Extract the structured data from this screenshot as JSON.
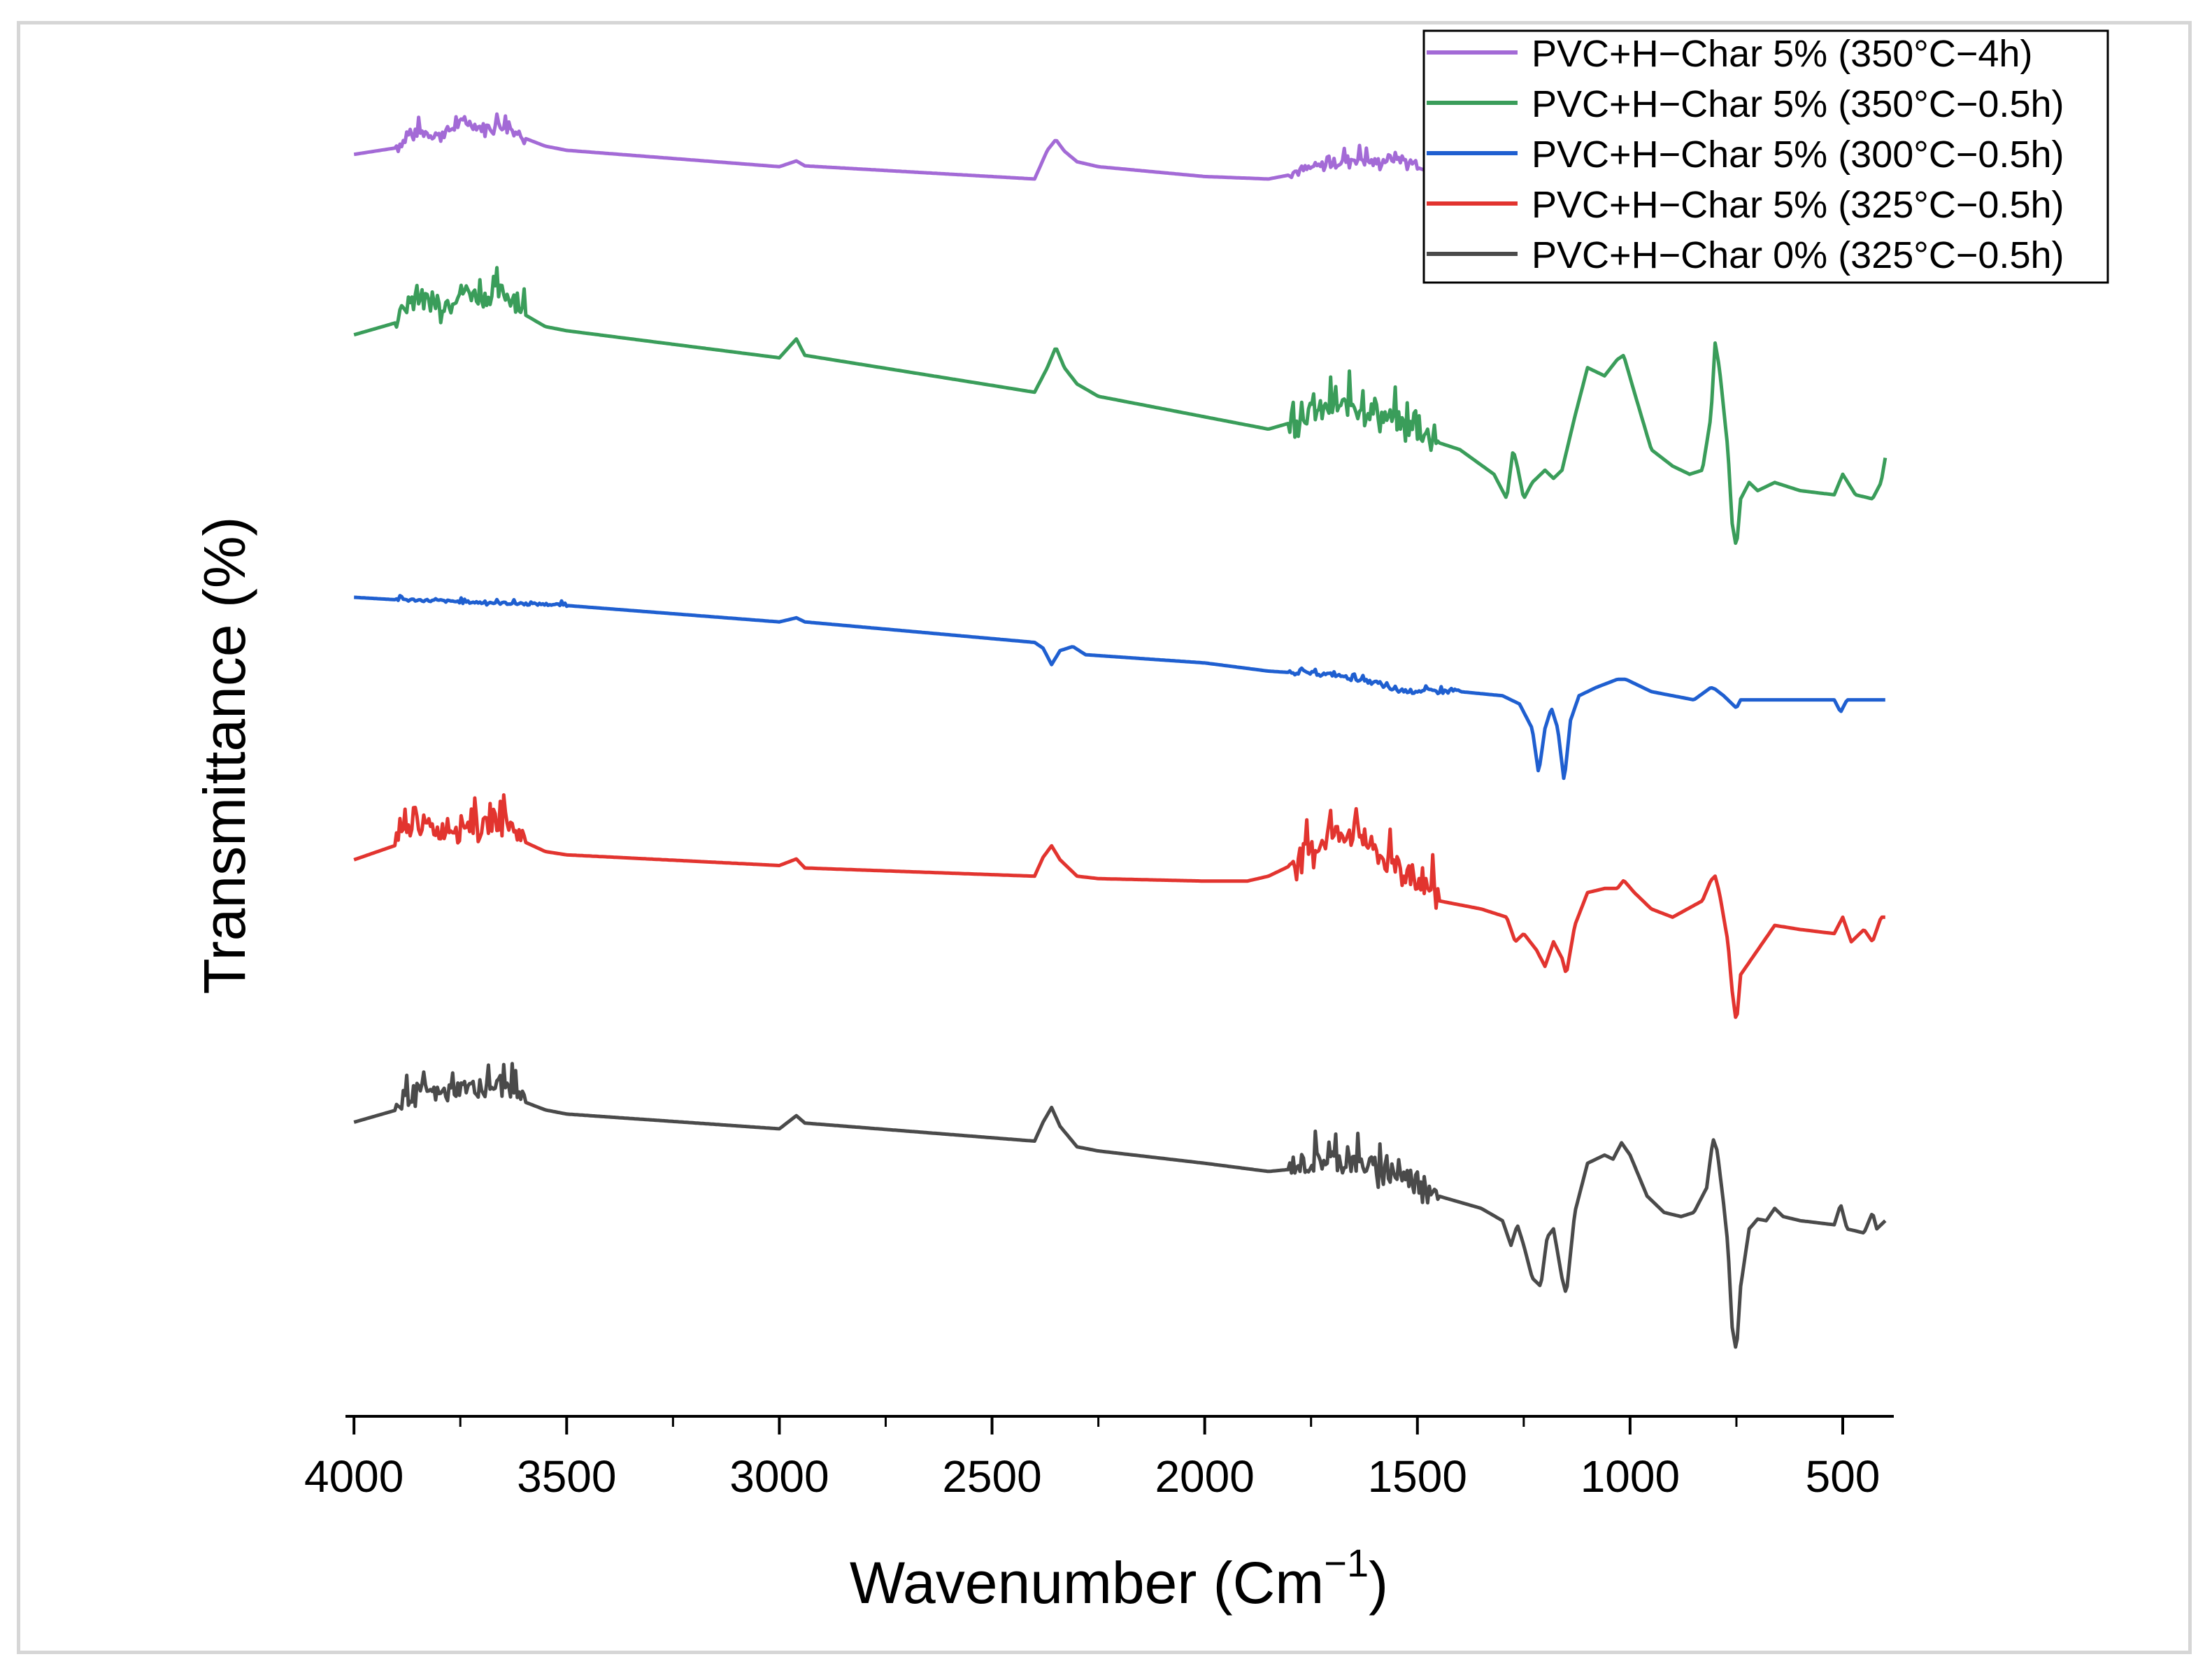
{
  "chart_data": {
    "type": "line",
    "xlabel": "Wavenumber (Cm",
    "xlabel_sup": "−1",
    "xlabel_tail": ")",
    "ylabel": "Transmittance (%)",
    "xlim": [
      4020,
      380
    ],
    "x_reversed": true,
    "ylim_note": "stacked offset traces, arbitrary units, no y tick labels",
    "x_ticks": [
      4000,
      3500,
      3000,
      2500,
      2000,
      1500,
      1000,
      500
    ],
    "x_tick_labels": [
      "4000",
      "3500",
      "3000",
      "2500",
      "2000",
      "1500",
      "1000",
      "500"
    ],
    "legend_position": "top-right",
    "series": [
      {
        "name": "PVC+H−Char 5% (350°C−4h)",
        "color": "#a36ad6",
        "offset": 88,
        "noise": [
          [
            3600,
            3900,
            1.2
          ],
          [
            1500,
            1800,
            1.3
          ]
        ],
        "points": [
          [
            4000,
            0
          ],
          [
            3900,
            0.8
          ],
          [
            3850,
            2.5
          ],
          [
            3800,
            2
          ],
          [
            3740,
            3.8
          ],
          [
            3700,
            3
          ],
          [
            3650,
            3.3
          ],
          [
            3600,
            2
          ],
          [
            3550,
            1
          ],
          [
            3500,
            0.5
          ],
          [
            3000,
            -1.5
          ],
          [
            2960,
            -0.8
          ],
          [
            2940,
            -1.4
          ],
          [
            2400,
            -3
          ],
          [
            2370,
            0.5
          ],
          [
            2350,
            1.8
          ],
          [
            2330,
            0.4
          ],
          [
            2300,
            -0.9
          ],
          [
            2250,
            -1.5
          ],
          [
            2000,
            -2.7
          ],
          [
            1850,
            -3
          ],
          [
            1750,
            -2
          ],
          [
            1700,
            -1.4
          ],
          [
            1650,
            -0.8
          ],
          [
            1600,
            -1.3
          ],
          [
            1550,
            -0.6
          ],
          [
            1500,
            -1.6
          ],
          [
            1400,
            -3.5
          ],
          [
            1300,
            -5.5
          ],
          [
            1270,
            -6.5
          ],
          [
            1240,
            -8
          ],
          [
            1215,
            -11
          ],
          [
            1200,
            -8
          ],
          [
            1180,
            -7.5
          ],
          [
            1160,
            -10
          ],
          [
            1150,
            -12
          ],
          [
            1130,
            -7
          ],
          [
            1100,
            -5
          ],
          [
            1060,
            -4
          ],
          [
            1030,
            -4
          ],
          [
            1010,
            -4.8
          ],
          [
            950,
            -5.8
          ],
          [
            850,
            -6.5
          ],
          [
            800,
            -3.8
          ],
          [
            780,
            -5.8
          ],
          [
            760,
            -9
          ],
          [
            740,
            -8
          ],
          [
            700,
            -7
          ],
          [
            660,
            -6.5
          ],
          [
            600,
            -7
          ],
          [
            520,
            -7.5
          ],
          [
            500,
            -6
          ],
          [
            480,
            -8
          ],
          [
            420,
            -8
          ],
          [
            400,
            -9
          ]
        ]
      },
      {
        "name": "PVC+H−Char 5% (350°C−0.5h)",
        "color": "#3a9d5a",
        "offset": 66,
        "noise": [
          [
            3600,
            3900,
            2.2
          ],
          [
            1450,
            1800,
            2.6
          ]
        ],
        "points": [
          [
            4000,
            0
          ],
          [
            3900,
            1.5
          ],
          [
            3850,
            4.3
          ],
          [
            3800,
            3
          ],
          [
            3740,
            5
          ],
          [
            3700,
            4
          ],
          [
            3650,
            4.8
          ],
          [
            3600,
            2.5
          ],
          [
            3550,
            1
          ],
          [
            3500,
            0.5
          ],
          [
            3000,
            -2.8
          ],
          [
            2960,
            -0.5
          ],
          [
            2940,
            -2.5
          ],
          [
            2400,
            -7
          ],
          [
            2370,
            -4
          ],
          [
            2350,
            -1.5
          ],
          [
            2330,
            -4
          ],
          [
            2300,
            -6
          ],
          [
            2250,
            -7.5
          ],
          [
            2000,
            -10
          ],
          [
            1850,
            -11.5
          ],
          [
            1750,
            -10
          ],
          [
            1700,
            -9.5
          ],
          [
            1650,
            -9
          ],
          [
            1600,
            -10
          ],
          [
            1550,
            -11
          ],
          [
            1500,
            -12.3
          ],
          [
            1400,
            -14
          ],
          [
            1320,
            -17
          ],
          [
            1290,
            -20
          ],
          [
            1275,
            -14
          ],
          [
            1265,
            -16
          ],
          [
            1250,
            -20
          ],
          [
            1230,
            -18
          ],
          [
            1200,
            -16.5
          ],
          [
            1180,
            -17.5
          ],
          [
            1160,
            -16.5
          ],
          [
            1130,
            -10
          ],
          [
            1100,
            -4
          ],
          [
            1060,
            -5
          ],
          [
            1030,
            -3
          ],
          [
            1015,
            -2.5
          ],
          [
            990,
            -7
          ],
          [
            950,
            -14
          ],
          [
            900,
            -16
          ],
          [
            860,
            -17
          ],
          [
            830,
            -16.5
          ],
          [
            810,
            -10
          ],
          [
            800,
            -1
          ],
          [
            790,
            -4
          ],
          [
            770,
            -14
          ],
          [
            760,
            -23
          ],
          [
            750,
            -26
          ],
          [
            740,
            -20
          ],
          [
            720,
            -18
          ],
          [
            700,
            -19
          ],
          [
            660,
            -18
          ],
          [
            600,
            -19
          ],
          [
            520,
            -19.5
          ],
          [
            500,
            -17
          ],
          [
            470,
            -19.5
          ],
          [
            430,
            -20
          ],
          [
            410,
            -18
          ],
          [
            400,
            -15
          ]
        ]
      },
      {
        "name": "PVC+H−Char 5% (300°C−0.5h)",
        "color": "#1f5fd0",
        "offset": 34,
        "noise": [
          [
            3500,
            3900,
            0.3
          ],
          [
            1400,
            1800,
            0.4
          ]
        ],
        "points": [
          [
            4000,
            0
          ],
          [
            3900,
            -0.3
          ],
          [
            3800,
            -0.5
          ],
          [
            3700,
            -0.7
          ],
          [
            3500,
            -1
          ],
          [
            3000,
            -3
          ],
          [
            2960,
            -2.5
          ],
          [
            2940,
            -3
          ],
          [
            2400,
            -5.5
          ],
          [
            2380,
            -6.2
          ],
          [
            2360,
            -8.2
          ],
          [
            2340,
            -6.5
          ],
          [
            2310,
            -6
          ],
          [
            2280,
            -7
          ],
          [
            2000,
            -8
          ],
          [
            1850,
            -9
          ],
          [
            1700,
            -9.5
          ],
          [
            1600,
            -10.5
          ],
          [
            1550,
            -11.5
          ],
          [
            1500,
            -11.5
          ],
          [
            1400,
            -11.5
          ],
          [
            1300,
            -12
          ],
          [
            1260,
            -13
          ],
          [
            1230,
            -16
          ],
          [
            1215,
            -21.5
          ],
          [
            1200,
            -16
          ],
          [
            1185,
            -13.5
          ],
          [
            1170,
            -16
          ],
          [
            1155,
            -22.5
          ],
          [
            1140,
            -15
          ],
          [
            1120,
            -12
          ],
          [
            1080,
            -11
          ],
          [
            1030,
            -10
          ],
          [
            1010,
            -10
          ],
          [
            950,
            -11.5
          ],
          [
            850,
            -12.5
          ],
          [
            810,
            -11
          ],
          [
            800,
            -11.2
          ],
          [
            780,
            -12
          ],
          [
            760,
            -13
          ],
          [
            750,
            -13.5
          ],
          [
            740,
            -12.5
          ],
          [
            700,
            -12.5
          ],
          [
            600,
            -12.5
          ],
          [
            520,
            -12.5
          ],
          [
            505,
            -14
          ],
          [
            490,
            -12.5
          ],
          [
            400,
            -12.5
          ]
        ]
      },
      {
        "name": "PVC+H−Char 5% (325°C−0.5h)",
        "color": "#e2342f",
        "offset": 2,
        "noise": [
          [
            3600,
            3900,
            2.2
          ],
          [
            1450,
            1800,
            2.8
          ]
        ],
        "points": [
          [
            4000,
            0
          ],
          [
            3900,
            1.8
          ],
          [
            3850,
            4.3
          ],
          [
            3800,
            3
          ],
          [
            3740,
            4
          ],
          [
            3700,
            3.5
          ],
          [
            3650,
            4.5
          ],
          [
            3600,
            2.2
          ],
          [
            3550,
            1
          ],
          [
            3500,
            0.6
          ],
          [
            3000,
            -0.7
          ],
          [
            2960,
            0.1
          ],
          [
            2940,
            -1
          ],
          [
            2400,
            -2
          ],
          [
            2380,
            0.3
          ],
          [
            2360,
            1.7
          ],
          [
            2340,
            0
          ],
          [
            2300,
            -2
          ],
          [
            2250,
            -2.3
          ],
          [
            2000,
            -2.6
          ],
          [
            1900,
            -2.6
          ],
          [
            1850,
            -2
          ],
          [
            1750,
            0.5
          ],
          [
            1700,
            2.5
          ],
          [
            1650,
            3
          ],
          [
            1600,
            0.5
          ],
          [
            1560,
            -1.5
          ],
          [
            1500,
            -3
          ],
          [
            1450,
            -5
          ],
          [
            1350,
            -6
          ],
          [
            1290,
            -7
          ],
          [
            1270,
            -10
          ],
          [
            1250,
            -9
          ],
          [
            1220,
            -11
          ],
          [
            1200,
            -13
          ],
          [
            1180,
            -10
          ],
          [
            1160,
            -12
          ],
          [
            1150,
            -14
          ],
          [
            1130,
            -8
          ],
          [
            1100,
            -4
          ],
          [
            1060,
            -3.5
          ],
          [
            1030,
            -3.5
          ],
          [
            1015,
            -2.5
          ],
          [
            990,
            -4
          ],
          [
            950,
            -6
          ],
          [
            900,
            -7
          ],
          [
            830,
            -5
          ],
          [
            810,
            -2.5
          ],
          [
            800,
            -2
          ],
          [
            790,
            -4
          ],
          [
            770,
            -10
          ],
          [
            760,
            -16
          ],
          [
            750,
            -20
          ],
          [
            740,
            -14
          ],
          [
            700,
            -11
          ],
          [
            660,
            -8
          ],
          [
            600,
            -8.5
          ],
          [
            520,
            -9
          ],
          [
            500,
            -7
          ],
          [
            480,
            -10
          ],
          [
            450,
            -8.5
          ],
          [
            430,
            -10
          ],
          [
            410,
            -7
          ],
          [
            400,
            -7
          ]
        ]
      },
      {
        "name": "PVC+H−Char 0% (325°C−0.5h)",
        "color": "#4a4a4a",
        "offset": -30,
        "noise": [
          [
            3600,
            3900,
            2.0
          ],
          [
            1450,
            1800,
            2.6
          ]
        ],
        "points": [
          [
            4000,
            0
          ],
          [
            3900,
            1.5
          ],
          [
            3850,
            3.5
          ],
          [
            3800,
            3
          ],
          [
            3740,
            4
          ],
          [
            3700,
            3.5
          ],
          [
            3650,
            4.3
          ],
          [
            3600,
            2.5
          ],
          [
            3550,
            1.5
          ],
          [
            3500,
            1
          ],
          [
            3000,
            -0.8
          ],
          [
            2960,
            0.8
          ],
          [
            2940,
            -0.1
          ],
          [
            2400,
            -2.3
          ],
          [
            2380,
            0
          ],
          [
            2360,
            1.8
          ],
          [
            2340,
            -0.5
          ],
          [
            2300,
            -3
          ],
          [
            2250,
            -3.5
          ],
          [
            2000,
            -5
          ],
          [
            1850,
            -6
          ],
          [
            1750,
            -5.5
          ],
          [
            1700,
            -5
          ],
          [
            1650,
            -5.5
          ],
          [
            1600,
            -6
          ],
          [
            1550,
            -7
          ],
          [
            1500,
            -7.5
          ],
          [
            1450,
            -9
          ],
          [
            1350,
            -10.5
          ],
          [
            1300,
            -12
          ],
          [
            1280,
            -15
          ],
          [
            1265,
            -12.5
          ],
          [
            1250,
            -15
          ],
          [
            1230,
            -19
          ],
          [
            1210,
            -20
          ],
          [
            1195,
            -14
          ],
          [
            1180,
            -13
          ],
          [
            1160,
            -19
          ],
          [
            1150,
            -21
          ],
          [
            1130,
            -11
          ],
          [
            1100,
            -5
          ],
          [
            1060,
            -4
          ],
          [
            1040,
            -4.5
          ],
          [
            1020,
            -2.5
          ],
          [
            1000,
            -4
          ],
          [
            960,
            -9
          ],
          [
            920,
            -11
          ],
          [
            880,
            -11.5
          ],
          [
            850,
            -11
          ],
          [
            820,
            -8
          ],
          [
            805,
            -2
          ],
          [
            795,
            -3.5
          ],
          [
            780,
            -10
          ],
          [
            770,
            -15
          ],
          [
            760,
            -25
          ],
          [
            750,
            -28
          ],
          [
            740,
            -20
          ],
          [
            720,
            -13
          ],
          [
            700,
            -11.8
          ],
          [
            680,
            -12
          ],
          [
            660,
            -10.5
          ],
          [
            640,
            -11.5
          ],
          [
            600,
            -12
          ],
          [
            520,
            -12.5
          ],
          [
            505,
            -10
          ],
          [
            490,
            -13
          ],
          [
            450,
            -13.5
          ],
          [
            430,
            -11
          ],
          [
            420,
            -13
          ],
          [
            400,
            -12
          ]
        ]
      }
    ]
  }
}
